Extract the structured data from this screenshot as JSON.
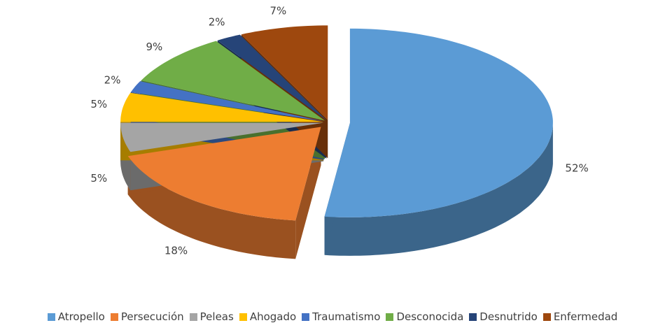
{
  "chart_data": {
    "type": "pie",
    "categories": [
      "Atropello",
      "Persecución",
      "Peleas",
      "Ahogado",
      "Traumatismo",
      "Desconocida",
      "Desnutrido",
      "Enfermedad"
    ],
    "values": [
      52,
      18,
      5,
      5,
      2,
      9,
      2,
      7
    ],
    "value_labels": [
      "52%",
      "18%",
      "5%",
      "5%",
      "2%",
      "9%",
      "2%",
      "7%"
    ],
    "colors": [
      "#5b9bd5",
      "#ed7d31",
      "#a5a5a5",
      "#ffc000",
      "#4472c4",
      "#70ad47",
      "#264478",
      "#9e480e"
    ],
    "legend": "bottom"
  }
}
